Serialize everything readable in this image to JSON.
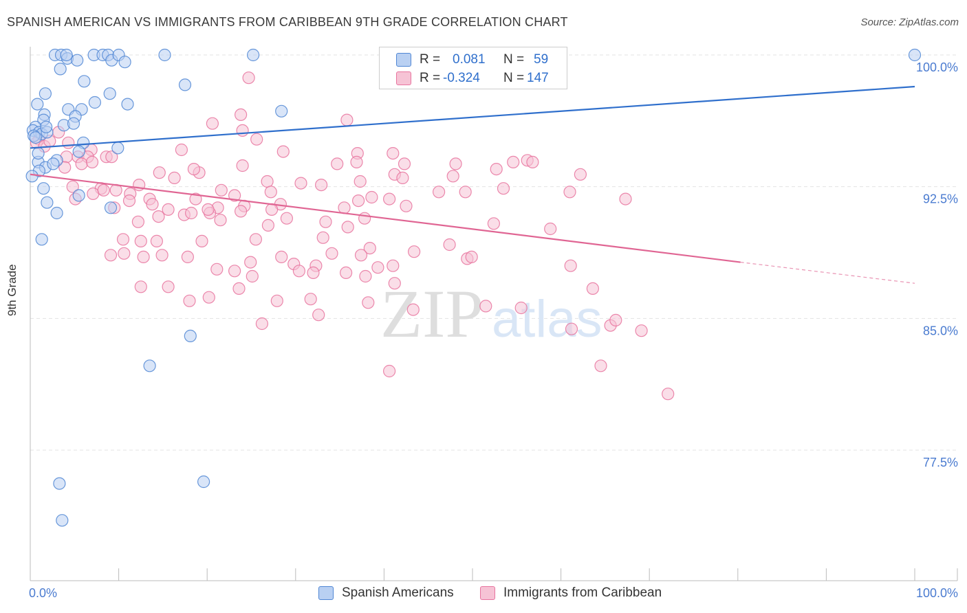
{
  "title": "SPANISH AMERICAN VS IMMIGRANTS FROM CARIBBEAN 9TH GRADE CORRELATION CHART",
  "source": "Source: ZipAtlas.com",
  "watermark_zip": "ZIP",
  "watermark_atlas": "atlas",
  "colors": {
    "blue": "#4f86d4",
    "blue_fill": "#b9d0f2",
    "pink": "#e8739e",
    "pink_fill": "#f6c3d5",
    "blue_line": "#2f6fcc",
    "pink_line": "#e06593",
    "tick_text": "#4a7bd0"
  },
  "stats": {
    "r_label": "R =",
    "n_label": "N =",
    "blue": {
      "r": "0.081",
      "n": "59"
    },
    "pink": {
      "r": "-0.324",
      "n": "147"
    }
  },
  "legend": {
    "blue": "Spanish Americans",
    "pink": "Immigrants from Caribbean"
  },
  "chart_data": {
    "type": "scatter",
    "title": "SPANISH AMERICAN VS IMMIGRANTS FROM CARIBBEAN 9TH GRADE CORRELATION CHART",
    "xlabel": "",
    "ylabel": "9th Grade",
    "xlim": [
      0,
      100
    ],
    "ylim": [
      71.6,
      101.2
    ],
    "x_ticks": [
      "0.0%",
      "100.0%"
    ],
    "y_ticks": [
      "100.0%",
      "92.5%",
      "85.0%",
      "77.5%"
    ],
    "y_tick_values": [
      100.0,
      92.5,
      85.0,
      77.5
    ],
    "grid": true,
    "legend_position": "bottom",
    "series": [
      {
        "name": "Spanish Americans",
        "color": "#4f86d4",
        "trend": {
          "x": [
            0,
            100
          ],
          "y": [
            94.7,
            98.2
          ]
        },
        "points": [
          [
            2.8,
            100.0
          ],
          [
            3.5,
            100.0
          ],
          [
            4.2,
            99.8
          ],
          [
            4.1,
            100.0
          ],
          [
            5.3,
            99.7
          ],
          [
            7.2,
            100.0
          ],
          [
            8.2,
            100.0
          ],
          [
            8.8,
            100.0
          ],
          [
            9.2,
            99.7
          ],
          [
            10.0,
            100.0
          ],
          [
            10.7,
            99.6
          ],
          [
            15.2,
            100.0
          ],
          [
            25.2,
            100.0
          ],
          [
            3.4,
            99.2
          ],
          [
            6.1,
            98.5
          ],
          [
            17.5,
            98.3
          ],
          [
            1.7,
            97.8
          ],
          [
            9.0,
            97.8
          ],
          [
            0.8,
            97.2
          ],
          [
            7.3,
            97.3
          ],
          [
            11.0,
            97.2
          ],
          [
            4.3,
            96.9
          ],
          [
            5.8,
            96.9
          ],
          [
            1.6,
            96.6
          ],
          [
            28.4,
            96.8
          ],
          [
            5.1,
            96.5
          ],
          [
            1.5,
            96.3
          ],
          [
            3.8,
            96.0
          ],
          [
            4.9,
            96.1
          ],
          [
            0.6,
            95.9
          ],
          [
            0.3,
            95.7
          ],
          [
            1.0,
            95.6
          ],
          [
            1.3,
            95.5
          ],
          [
            1.9,
            95.6
          ],
          [
            0.4,
            95.4
          ],
          [
            0.6,
            95.3
          ],
          [
            6.0,
            95.0
          ],
          [
            9.9,
            94.7
          ],
          [
            5.5,
            94.5
          ],
          [
            3.0,
            94.0
          ],
          [
            0.9,
            93.9
          ],
          [
            1.7,
            93.6
          ],
          [
            2.6,
            93.8
          ],
          [
            1.0,
            93.4
          ],
          [
            0.2,
            93.1
          ],
          [
            1.5,
            92.4
          ],
          [
            5.5,
            92.0
          ],
          [
            1.9,
            91.6
          ],
          [
            9.1,
            91.3
          ],
          [
            3.0,
            91.0
          ],
          [
            1.3,
            89.5
          ],
          [
            18.1,
            84.0
          ],
          [
            13.5,
            82.3
          ],
          [
            3.3,
            75.6
          ],
          [
            19.6,
            75.7
          ],
          [
            3.6,
            73.5
          ],
          [
            100.0,
            100.0
          ],
          [
            0.9,
            94.4
          ],
          [
            1.8,
            95.9
          ]
        ]
      },
      {
        "name": "Immigrants from Caribbean",
        "color": "#e8739e",
        "trend": {
          "x": [
            0,
            80.3
          ],
          "y": [
            93.2,
            88.2
          ]
        },
        "trend_dashed": {
          "x": [
            80.3,
            100
          ],
          "y": [
            88.2,
            87.0
          ]
        },
        "points": [
          [
            54.3,
            100.0
          ],
          [
            24.7,
            98.7
          ],
          [
            20.6,
            96.1
          ],
          [
            24.0,
            95.7
          ],
          [
            35.8,
            96.3
          ],
          [
            23.8,
            96.6
          ],
          [
            25.6,
            95.2
          ],
          [
            3.2,
            95.6
          ],
          [
            4.3,
            95.0
          ],
          [
            1.0,
            95.2
          ],
          [
            0.7,
            95.0
          ],
          [
            1.6,
            94.8
          ],
          [
            2.2,
            95.1
          ],
          [
            6.9,
            94.6
          ],
          [
            17.1,
            94.6
          ],
          [
            28.6,
            94.5
          ],
          [
            37.0,
            94.4
          ],
          [
            41.0,
            94.4
          ],
          [
            4.1,
            94.2
          ],
          [
            5.4,
            94.2
          ],
          [
            6.5,
            94.2
          ],
          [
            8.6,
            94.2
          ],
          [
            9.2,
            94.2
          ],
          [
            36.9,
            93.9
          ],
          [
            42.3,
            93.8
          ],
          [
            3.9,
            93.6
          ],
          [
            5.8,
            93.8
          ],
          [
            7.0,
            93.9
          ],
          [
            19.1,
            93.3
          ],
          [
            18.5,
            93.5
          ],
          [
            24.0,
            93.7
          ],
          [
            34.7,
            93.8
          ],
          [
            41.2,
            93.2
          ],
          [
            48.1,
            93.8
          ],
          [
            54.6,
            93.9
          ],
          [
            56.2,
            94.0
          ],
          [
            14.6,
            93.3
          ],
          [
            16.3,
            93.0
          ],
          [
            47.8,
            93.1
          ],
          [
            52.7,
            93.5
          ],
          [
            56.8,
            93.9
          ],
          [
            62.2,
            93.2
          ],
          [
            26.8,
            92.8
          ],
          [
            30.6,
            92.7
          ],
          [
            32.9,
            92.6
          ],
          [
            42.1,
            93.0
          ],
          [
            53.5,
            92.4
          ],
          [
            12.3,
            92.6
          ],
          [
            8.0,
            92.4
          ],
          [
            21.6,
            92.3
          ],
          [
            11.3,
            92.1
          ],
          [
            27.2,
            92.2
          ],
          [
            37.3,
            92.8
          ],
          [
            46.2,
            92.2
          ],
          [
            49.2,
            92.2
          ],
          [
            7.1,
            92.1
          ],
          [
            8.3,
            92.3
          ],
          [
            23.1,
            92.0
          ],
          [
            38.6,
            91.9
          ],
          [
            40.6,
            91.8
          ],
          [
            61.0,
            92.2
          ],
          [
            67.3,
            91.8
          ],
          [
            11.2,
            91.7
          ],
          [
            13.5,
            91.8
          ],
          [
            18.7,
            91.8
          ],
          [
            21.2,
            91.3
          ],
          [
            28.3,
            91.5
          ],
          [
            20.3,
            91.0
          ],
          [
            37.1,
            91.7
          ],
          [
            42.5,
            91.4
          ],
          [
            15.6,
            91.2
          ],
          [
            24.2,
            91.4
          ],
          [
            27.3,
            91.2
          ],
          [
            35.5,
            91.3
          ],
          [
            37.8,
            90.7
          ],
          [
            17.4,
            90.9
          ],
          [
            20.1,
            91.2
          ],
          [
            21.5,
            90.6
          ],
          [
            23.8,
            91.1
          ],
          [
            14.5,
            90.8
          ],
          [
            26.9,
            90.3
          ],
          [
            29.0,
            90.7
          ],
          [
            33.4,
            90.5
          ],
          [
            35.9,
            90.2
          ],
          [
            52.4,
            90.4
          ],
          [
            58.8,
            90.1
          ],
          [
            33.1,
            89.6
          ],
          [
            25.5,
            89.5
          ],
          [
            19.4,
            89.4
          ],
          [
            12.5,
            89.4
          ],
          [
            14.3,
            89.4
          ],
          [
            10.5,
            89.5
          ],
          [
            47.4,
            89.2
          ],
          [
            38.4,
            89.0
          ],
          [
            43.4,
            88.8
          ],
          [
            37.4,
            88.6
          ],
          [
            49.4,
            88.4
          ],
          [
            17.8,
            88.5
          ],
          [
            14.9,
            88.6
          ],
          [
            12.8,
            88.5
          ],
          [
            10.6,
            88.7
          ],
          [
            9.1,
            88.6
          ],
          [
            24.9,
            88.2
          ],
          [
            29.8,
            88.1
          ],
          [
            32.3,
            88.0
          ],
          [
            39.3,
            87.9
          ],
          [
            41.0,
            88.0
          ],
          [
            61.1,
            88.0
          ],
          [
            49.9,
            88.5
          ],
          [
            28.4,
            88.5
          ],
          [
            21.1,
            87.8
          ],
          [
            23.1,
            87.7
          ],
          [
            25.1,
            87.4
          ],
          [
            30.4,
            87.7
          ],
          [
            32.0,
            87.6
          ],
          [
            35.7,
            87.6
          ],
          [
            41.2,
            87.0
          ],
          [
            12.5,
            86.8
          ],
          [
            15.6,
            86.8
          ],
          [
            23.6,
            86.7
          ],
          [
            20.2,
            86.2
          ],
          [
            18.0,
            86.0
          ],
          [
            27.9,
            86.0
          ],
          [
            31.7,
            86.1
          ],
          [
            38.2,
            85.9
          ],
          [
            51.5,
            85.7
          ],
          [
            32.6,
            85.2
          ],
          [
            26.2,
            84.7
          ],
          [
            65.6,
            84.6
          ],
          [
            61.2,
            84.4
          ],
          [
            4.8,
            92.5
          ],
          [
            9.7,
            92.3
          ],
          [
            5.1,
            91.8
          ],
          [
            12.2,
            90.5
          ],
          [
            9.5,
            91.3
          ],
          [
            13.8,
            91.5
          ],
          [
            18.2,
            91.0
          ],
          [
            34.1,
            88.7
          ],
          [
            37.9,
            87.4
          ],
          [
            66.2,
            84.9
          ],
          [
            72.1,
            80.7
          ],
          [
            64.5,
            82.3
          ],
          [
            40.6,
            82.0
          ],
          [
            43.3,
            85.5
          ],
          [
            55.5,
            85.6
          ],
          [
            69.1,
            84.3
          ],
          [
            63.6,
            86.7
          ]
        ]
      }
    ]
  }
}
